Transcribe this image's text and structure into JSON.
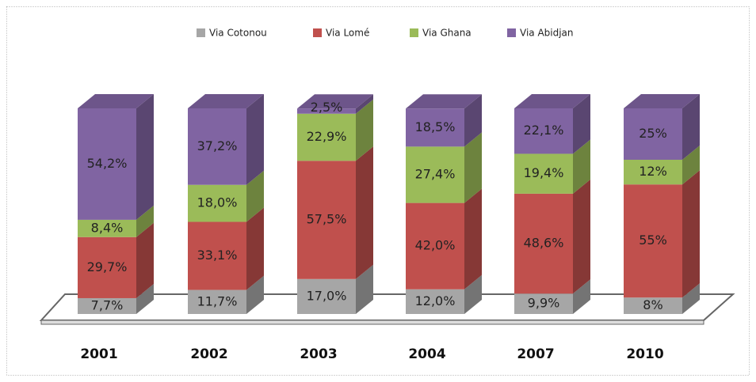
{
  "chart_data": {
    "type": "stacked_bar_3d",
    "categories": [
      "2001",
      "2002",
      "2003",
      "2004",
      "2007",
      "2010"
    ],
    "ylim": [
      0,
      100
    ],
    "legend": "top",
    "series": [
      {
        "name": "Via Cotonou",
        "color": "#a6a6a6",
        "values": [
          7.7,
          11.7,
          17.0,
          12.0,
          9.9,
          8
        ],
        "value_labels": [
          "7,7%",
          "11,7%",
          "17,0%",
          "12,0%",
          "9,9%",
          "8%"
        ]
      },
      {
        "name": "Via Lomé",
        "color": "#c0504d",
        "values": [
          29.7,
          33.1,
          57.5,
          42.0,
          48.6,
          55
        ],
        "value_labels": [
          "29,7%",
          "33,1%",
          "57,5%",
          "42,0%",
          "48,6%",
          "55%"
        ]
      },
      {
        "name": "Via Ghana",
        "color": "#9bbb59",
        "values": [
          8.4,
          18.0,
          22.9,
          27.4,
          19.4,
          12
        ],
        "value_labels": [
          "8,4%",
          "18,0%",
          "22,9%",
          "27,4%",
          "19,4%",
          "12%"
        ]
      },
      {
        "name": "Via Abidjan",
        "color": "#8064a2",
        "values": [
          54.2,
          37.2,
          2.5,
          18.5,
          22.1,
          25
        ],
        "value_labels": [
          "54,2%",
          "37,2%",
          "2,5%",
          "18,5%",
          "22,1%",
          "25%"
        ]
      }
    ]
  }
}
